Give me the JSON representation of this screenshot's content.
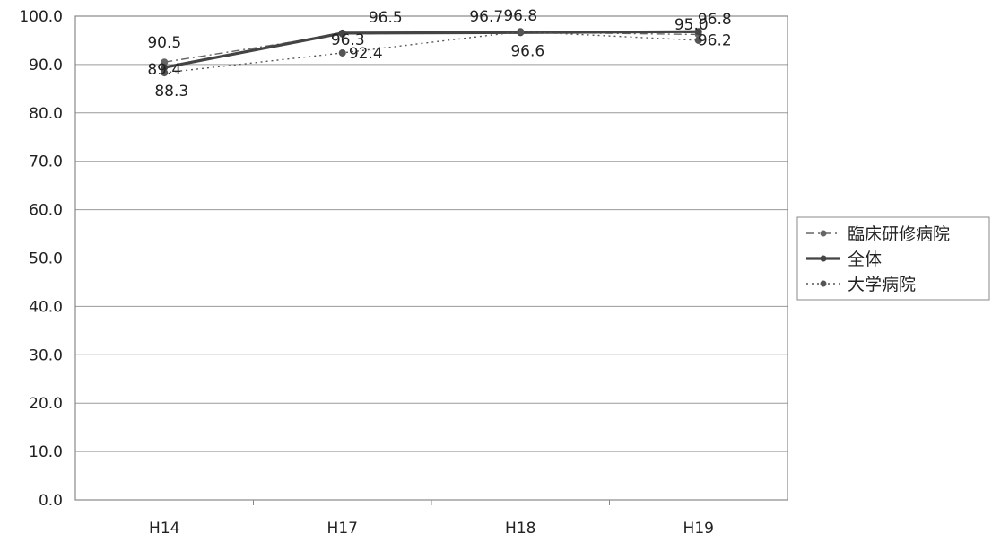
{
  "chart_data": {
    "type": "line",
    "categories": [
      "H14",
      "H17",
      "H18",
      "H19"
    ],
    "ylim": [
      0,
      100
    ],
    "yticks": [
      "0.0",
      "10.0",
      "20.0",
      "30.0",
      "40.0",
      "50.0",
      "60.0",
      "70.0",
      "80.0",
      "90.0",
      "100.0"
    ],
    "grid": true,
    "legend_position": "right",
    "series": [
      {
        "name": "臨床研修病院",
        "values": [
          90.5,
          96.3,
          96.7,
          96.2
        ],
        "labels": [
          "90.5",
          "96.3",
          "96.7",
          "96.2"
        ],
        "style": "dash-dot",
        "color": "#666666"
      },
      {
        "name": "全体",
        "values": [
          89.4,
          96.5,
          96.6,
          96.8
        ],
        "labels": [
          "89.4",
          "96.5",
          "96.6",
          "96.8"
        ],
        "style": "solid",
        "color": "#444444"
      },
      {
        "name": "大学病院",
        "values": [
          88.3,
          92.4,
          96.8,
          95.0
        ],
        "labels": [
          "88.3",
          "92.4",
          "96.8",
          "95.0"
        ],
        "style": "dotted",
        "color": "#555555"
      }
    ]
  }
}
